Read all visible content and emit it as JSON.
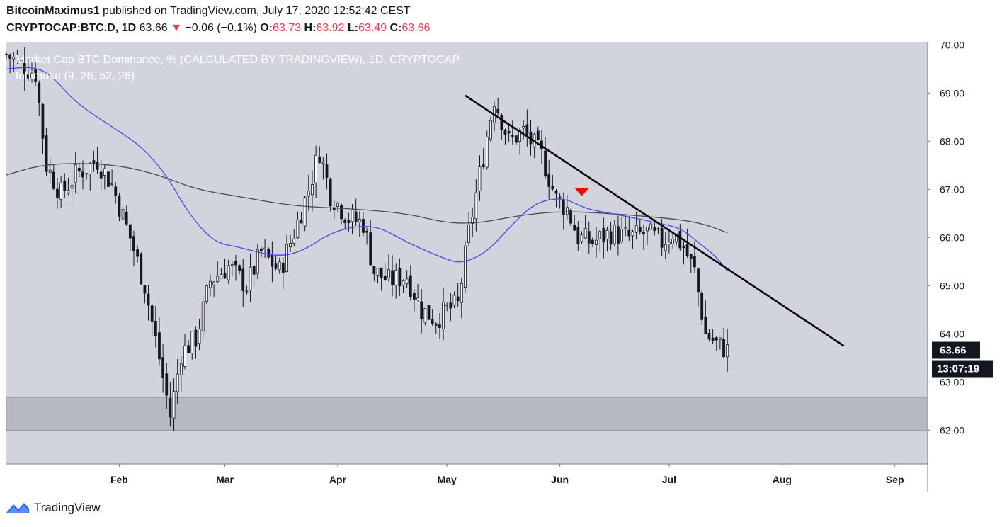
{
  "header": {
    "author": "BitcoinMaximus1",
    "published": "published on TradingView.com, July 17, 2020 12:52:42 CEST",
    "symbol": "CRYPTOCAP:BTC.D, 1D",
    "last": "63.66",
    "change_arrow": "▼",
    "change": "−0.06 (−0.1%)",
    "o_label": "O:",
    "o": "63.73",
    "h_label": "H:",
    "h": "63.92",
    "l_label": "L:",
    "l": "63.49",
    "c_label": "C:",
    "c": "63.66"
  },
  "footer": {
    "brand": "TradingView",
    "icon": "tradingview-logo-icon"
  },
  "colors": {
    "plot_bg": "#d1d4dc",
    "candle": "#131722",
    "ma_fast": "#3f4fe6",
    "ma_slow": "#4a4a4a",
    "support_zone": "#b7b9c2",
    "marker": "#ff0000",
    "price_label_bg": "#131722"
  },
  "chart_data": {
    "type": "candlestick",
    "title": "Market Cap BTC Dominance, % (CALCULATED BY TRADINGVIEW), 1D, CRYPTOCAP",
    "indicator": "Ichimoku (9, 26, 52, 26)",
    "ylim": [
      61.3,
      70.05
    ],
    "yticks": [
      "62.00",
      "63.00",
      "64.00",
      "65.00",
      "66.00",
      "67.00",
      "68.00",
      "69.00",
      "70.00"
    ],
    "x_range": [
      "2020-01-01",
      "2020-09-10"
    ],
    "xticks": [
      {
        "date": "2020-02-01",
        "label": "Feb"
      },
      {
        "date": "2020-03-01",
        "label": "Mar"
      },
      {
        "date": "2020-04-01",
        "label": "Apr"
      },
      {
        "date": "2020-05-01",
        "label": "May"
      },
      {
        "date": "2020-06-01",
        "label": "Jun"
      },
      {
        "date": "2020-07-01",
        "label": "Jul"
      },
      {
        "date": "2020-08-01",
        "label": "Aug"
      },
      {
        "date": "2020-09-01",
        "label": "Sep"
      }
    ],
    "last_price": "63.66",
    "countdown": "13:07:19",
    "candle_keypoints": [
      {
        "date": "2020-01-01",
        "close": 69.8
      },
      {
        "date": "2020-01-05",
        "close": 69.6
      },
      {
        "date": "2020-01-09",
        "close": 69.4
      },
      {
        "date": "2020-01-12",
        "close": 67.5
      },
      {
        "date": "2020-01-16",
        "close": 66.9
      },
      {
        "date": "2020-01-20",
        "close": 67.3
      },
      {
        "date": "2020-01-26",
        "close": 67.6
      },
      {
        "date": "2020-01-30",
        "close": 67.1
      },
      {
        "date": "2020-02-04",
        "close": 66.0
      },
      {
        "date": "2020-02-08",
        "close": 65.0
      },
      {
        "date": "2020-02-12",
        "close": 63.5
      },
      {
        "date": "2020-02-15",
        "close": 62.3
      },
      {
        "date": "2020-02-18",
        "close": 63.6
      },
      {
        "date": "2020-02-22",
        "close": 63.9
      },
      {
        "date": "2020-02-26",
        "close": 65.1
      },
      {
        "date": "2020-03-02",
        "close": 65.4
      },
      {
        "date": "2020-03-07",
        "close": 65.0
      },
      {
        "date": "2020-03-11",
        "close": 65.7
      },
      {
        "date": "2020-03-16",
        "close": 65.3
      },
      {
        "date": "2020-03-20",
        "close": 66.1
      },
      {
        "date": "2020-03-24",
        "close": 67.0
      },
      {
        "date": "2020-03-27",
        "close": 67.8
      },
      {
        "date": "2020-03-30",
        "close": 66.9
      },
      {
        "date": "2020-04-04",
        "close": 66.4
      },
      {
        "date": "2020-04-08",
        "close": 66.3
      },
      {
        "date": "2020-04-11",
        "close": 65.3
      },
      {
        "date": "2020-04-15",
        "close": 65.1
      },
      {
        "date": "2020-04-20",
        "close": 65.2
      },
      {
        "date": "2020-04-24",
        "close": 64.5
      },
      {
        "date": "2020-04-28",
        "close": 64.3
      },
      {
        "date": "2020-05-01",
        "close": 64.5
      },
      {
        "date": "2020-05-04",
        "close": 64.6
      },
      {
        "date": "2020-05-07",
        "close": 66.1
      },
      {
        "date": "2020-05-10",
        "close": 67.3
      },
      {
        "date": "2020-05-14",
        "close": 68.9
      },
      {
        "date": "2020-05-18",
        "close": 68.0
      },
      {
        "date": "2020-05-22",
        "close": 68.2
      },
      {
        "date": "2020-05-27",
        "close": 67.7
      },
      {
        "date": "2020-05-31",
        "close": 66.8
      },
      {
        "date": "2020-06-03",
        "close": 66.6
      },
      {
        "date": "2020-06-06",
        "close": 66.0
      },
      {
        "date": "2020-06-10",
        "close": 65.9
      },
      {
        "date": "2020-06-15",
        "close": 66.1
      },
      {
        "date": "2020-06-20",
        "close": 66.0
      },
      {
        "date": "2020-06-25",
        "close": 66.1
      },
      {
        "date": "2020-06-29",
        "close": 65.9
      },
      {
        "date": "2020-07-02",
        "close": 66.1
      },
      {
        "date": "2020-07-05",
        "close": 65.8
      },
      {
        "date": "2020-07-08",
        "close": 65.3
      },
      {
        "date": "2020-07-11",
        "close": 64.0
      },
      {
        "date": "2020-07-14",
        "close": 63.8
      },
      {
        "date": "2020-07-17",
        "close": 63.66
      }
    ],
    "ma_fast_keypoints": [
      {
        "date": "2020-01-01",
        "value": 69.5
      },
      {
        "date": "2020-01-08",
        "value": 69.55
      },
      {
        "date": "2020-01-13",
        "value": 69.4
      },
      {
        "date": "2020-01-20",
        "value": 68.8
      },
      {
        "date": "2020-01-30",
        "value": 68.3
      },
      {
        "date": "2020-02-07",
        "value": 67.9
      },
      {
        "date": "2020-02-14",
        "value": 67.3
      },
      {
        "date": "2020-02-20",
        "value": 66.5
      },
      {
        "date": "2020-02-27",
        "value": 65.9
      },
      {
        "date": "2020-03-05",
        "value": 65.8
      },
      {
        "date": "2020-03-15",
        "value": 65.6
      },
      {
        "date": "2020-03-22",
        "value": 65.7
      },
      {
        "date": "2020-03-30",
        "value": 66.1
      },
      {
        "date": "2020-04-07",
        "value": 66.25
      },
      {
        "date": "2020-04-13",
        "value": 66.2
      },
      {
        "date": "2020-04-20",
        "value": 65.9
      },
      {
        "date": "2020-04-29",
        "value": 65.6
      },
      {
        "date": "2020-05-05",
        "value": 65.45
      },
      {
        "date": "2020-05-12",
        "value": 65.7
      },
      {
        "date": "2020-05-18",
        "value": 66.2
      },
      {
        "date": "2020-05-24",
        "value": 66.65
      },
      {
        "date": "2020-05-29",
        "value": 66.8
      },
      {
        "date": "2020-06-03",
        "value": 66.8
      },
      {
        "date": "2020-06-08",
        "value": 66.6
      },
      {
        "date": "2020-06-15",
        "value": 66.5
      },
      {
        "date": "2020-06-22",
        "value": 66.4
      },
      {
        "date": "2020-06-28",
        "value": 66.3
      },
      {
        "date": "2020-07-04",
        "value": 66.2
      },
      {
        "date": "2020-07-09",
        "value": 65.9
      },
      {
        "date": "2020-07-14",
        "value": 65.6
      },
      {
        "date": "2020-07-17",
        "value": 65.3
      }
    ],
    "ma_slow_keypoints": [
      {
        "date": "2020-01-01",
        "value": 67.3
      },
      {
        "date": "2020-01-10",
        "value": 67.5
      },
      {
        "date": "2020-01-20",
        "value": 67.55
      },
      {
        "date": "2020-02-01",
        "value": 67.5
      },
      {
        "date": "2020-02-12",
        "value": 67.3
      },
      {
        "date": "2020-02-22",
        "value": 67.0
      },
      {
        "date": "2020-03-05",
        "value": 66.85
      },
      {
        "date": "2020-03-20",
        "value": 66.65
      },
      {
        "date": "2020-04-05",
        "value": 66.6
      },
      {
        "date": "2020-04-20",
        "value": 66.5
      },
      {
        "date": "2020-05-01",
        "value": 66.3
      },
      {
        "date": "2020-05-10",
        "value": 66.3
      },
      {
        "date": "2020-05-20",
        "value": 66.45
      },
      {
        "date": "2020-06-01",
        "value": 66.55
      },
      {
        "date": "2020-06-15",
        "value": 66.5
      },
      {
        "date": "2020-07-01",
        "value": 66.4
      },
      {
        "date": "2020-07-10",
        "value": 66.3
      },
      {
        "date": "2020-07-17",
        "value": 66.1
      }
    ],
    "trendline": {
      "start": {
        "date": "2020-05-06",
        "value": 68.95
      },
      "end": {
        "date": "2020-08-18",
        "value": 63.75
      }
    },
    "support_zone": {
      "from": 62.0,
      "to": 62.68
    },
    "marker": {
      "date": "2020-06-07",
      "value": 66.95,
      "shape": "down-triangle"
    },
    "grid": false
  }
}
